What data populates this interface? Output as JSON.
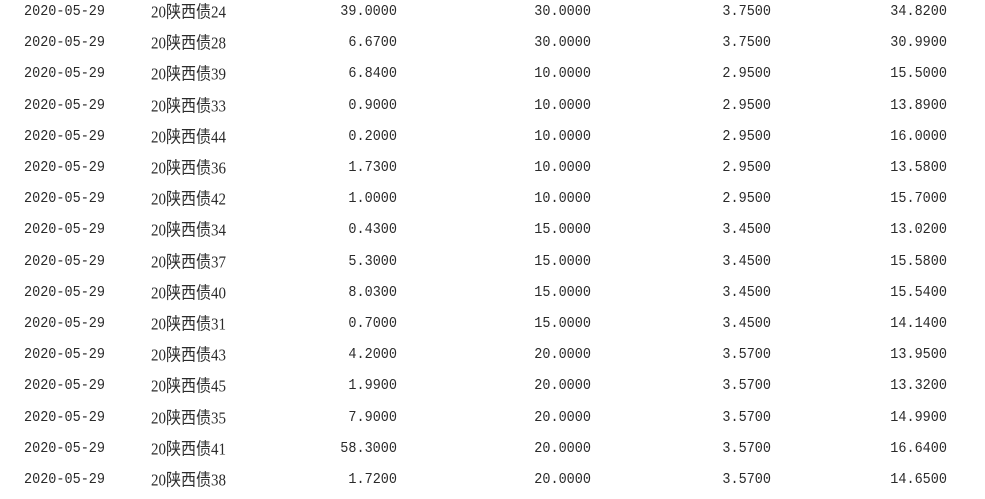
{
  "table": {
    "rows": [
      [
        "2020-05-29",
        "20陕西债24",
        "39.0000",
        "30.0000",
        "3.7500",
        "34.8200"
      ],
      [
        "2020-05-29",
        "20陕西债28",
        "6.6700",
        "30.0000",
        "3.7500",
        "30.9900"
      ],
      [
        "2020-05-29",
        "20陕西债39",
        "6.8400",
        "10.0000",
        "2.9500",
        "15.5000"
      ],
      [
        "2020-05-29",
        "20陕西债33",
        "0.9000",
        "10.0000",
        "2.9500",
        "13.8900"
      ],
      [
        "2020-05-29",
        "20陕西债44",
        "0.2000",
        "10.0000",
        "2.9500",
        "16.0000"
      ],
      [
        "2020-05-29",
        "20陕西债36",
        "1.7300",
        "10.0000",
        "2.9500",
        "13.5800"
      ],
      [
        "2020-05-29",
        "20陕西债42",
        "1.0000",
        "10.0000",
        "2.9500",
        "15.7000"
      ],
      [
        "2020-05-29",
        "20陕西债34",
        "0.4300",
        "15.0000",
        "3.4500",
        "13.0200"
      ],
      [
        "2020-05-29",
        "20陕西债37",
        "5.3000",
        "15.0000",
        "3.4500",
        "15.5800"
      ],
      [
        "2020-05-29",
        "20陕西债40",
        "8.0300",
        "15.0000",
        "3.4500",
        "15.5400"
      ],
      [
        "2020-05-29",
        "20陕西债31",
        "0.7000",
        "15.0000",
        "3.4500",
        "14.1400"
      ],
      [
        "2020-05-29",
        "20陕西债43",
        "4.2000",
        "20.0000",
        "3.5700",
        "13.9500"
      ],
      [
        "2020-05-29",
        "20陕西债45",
        "1.9900",
        "20.0000",
        "3.5700",
        "13.3200"
      ],
      [
        "2020-05-29",
        "20陕西债35",
        "7.9000",
        "20.0000",
        "3.5700",
        "14.9900"
      ],
      [
        "2020-05-29",
        "20陕西债41",
        "58.3000",
        "20.0000",
        "3.5700",
        "16.6400"
      ],
      [
        "2020-05-29",
        "20陕西债38",
        "1.7200",
        "20.0000",
        "3.5700",
        "14.6500"
      ]
    ]
  }
}
